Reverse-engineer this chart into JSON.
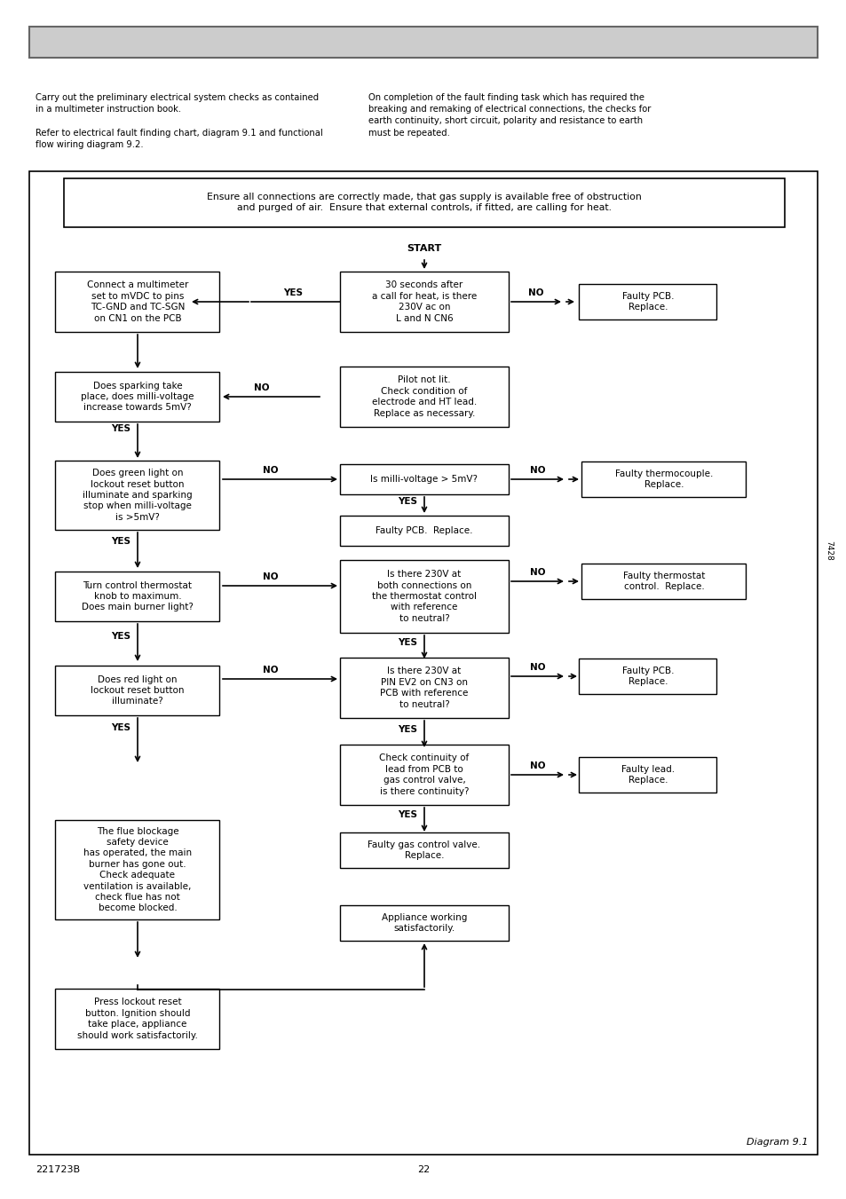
{
  "page_num": "22",
  "doc_code": "221723B",
  "diagram_label": "Diagram 9.1",
  "side_label": "7428",
  "intro_left": "Carry out the preliminary electrical system checks as contained\nin a multimeter instruction book.\n\nRefer to electrical fault finding chart, diagram 9.1 and functional\nflow wiring diagram 9.2.",
  "intro_right": "On completion of the fault finding task which has required the\nbreaking and remaking of electrical connections, the checks for\nearth continuity, short circuit, polarity and resistance to earth\nmust be repeated.",
  "top_box_text": "Ensure all connections are correctly made, that gas supply is available free of obstruction\nand purged of air.  Ensure that external controls, if fitted, are calling for heat.",
  "header_color": "#cccccc",
  "border_color": "#666666"
}
